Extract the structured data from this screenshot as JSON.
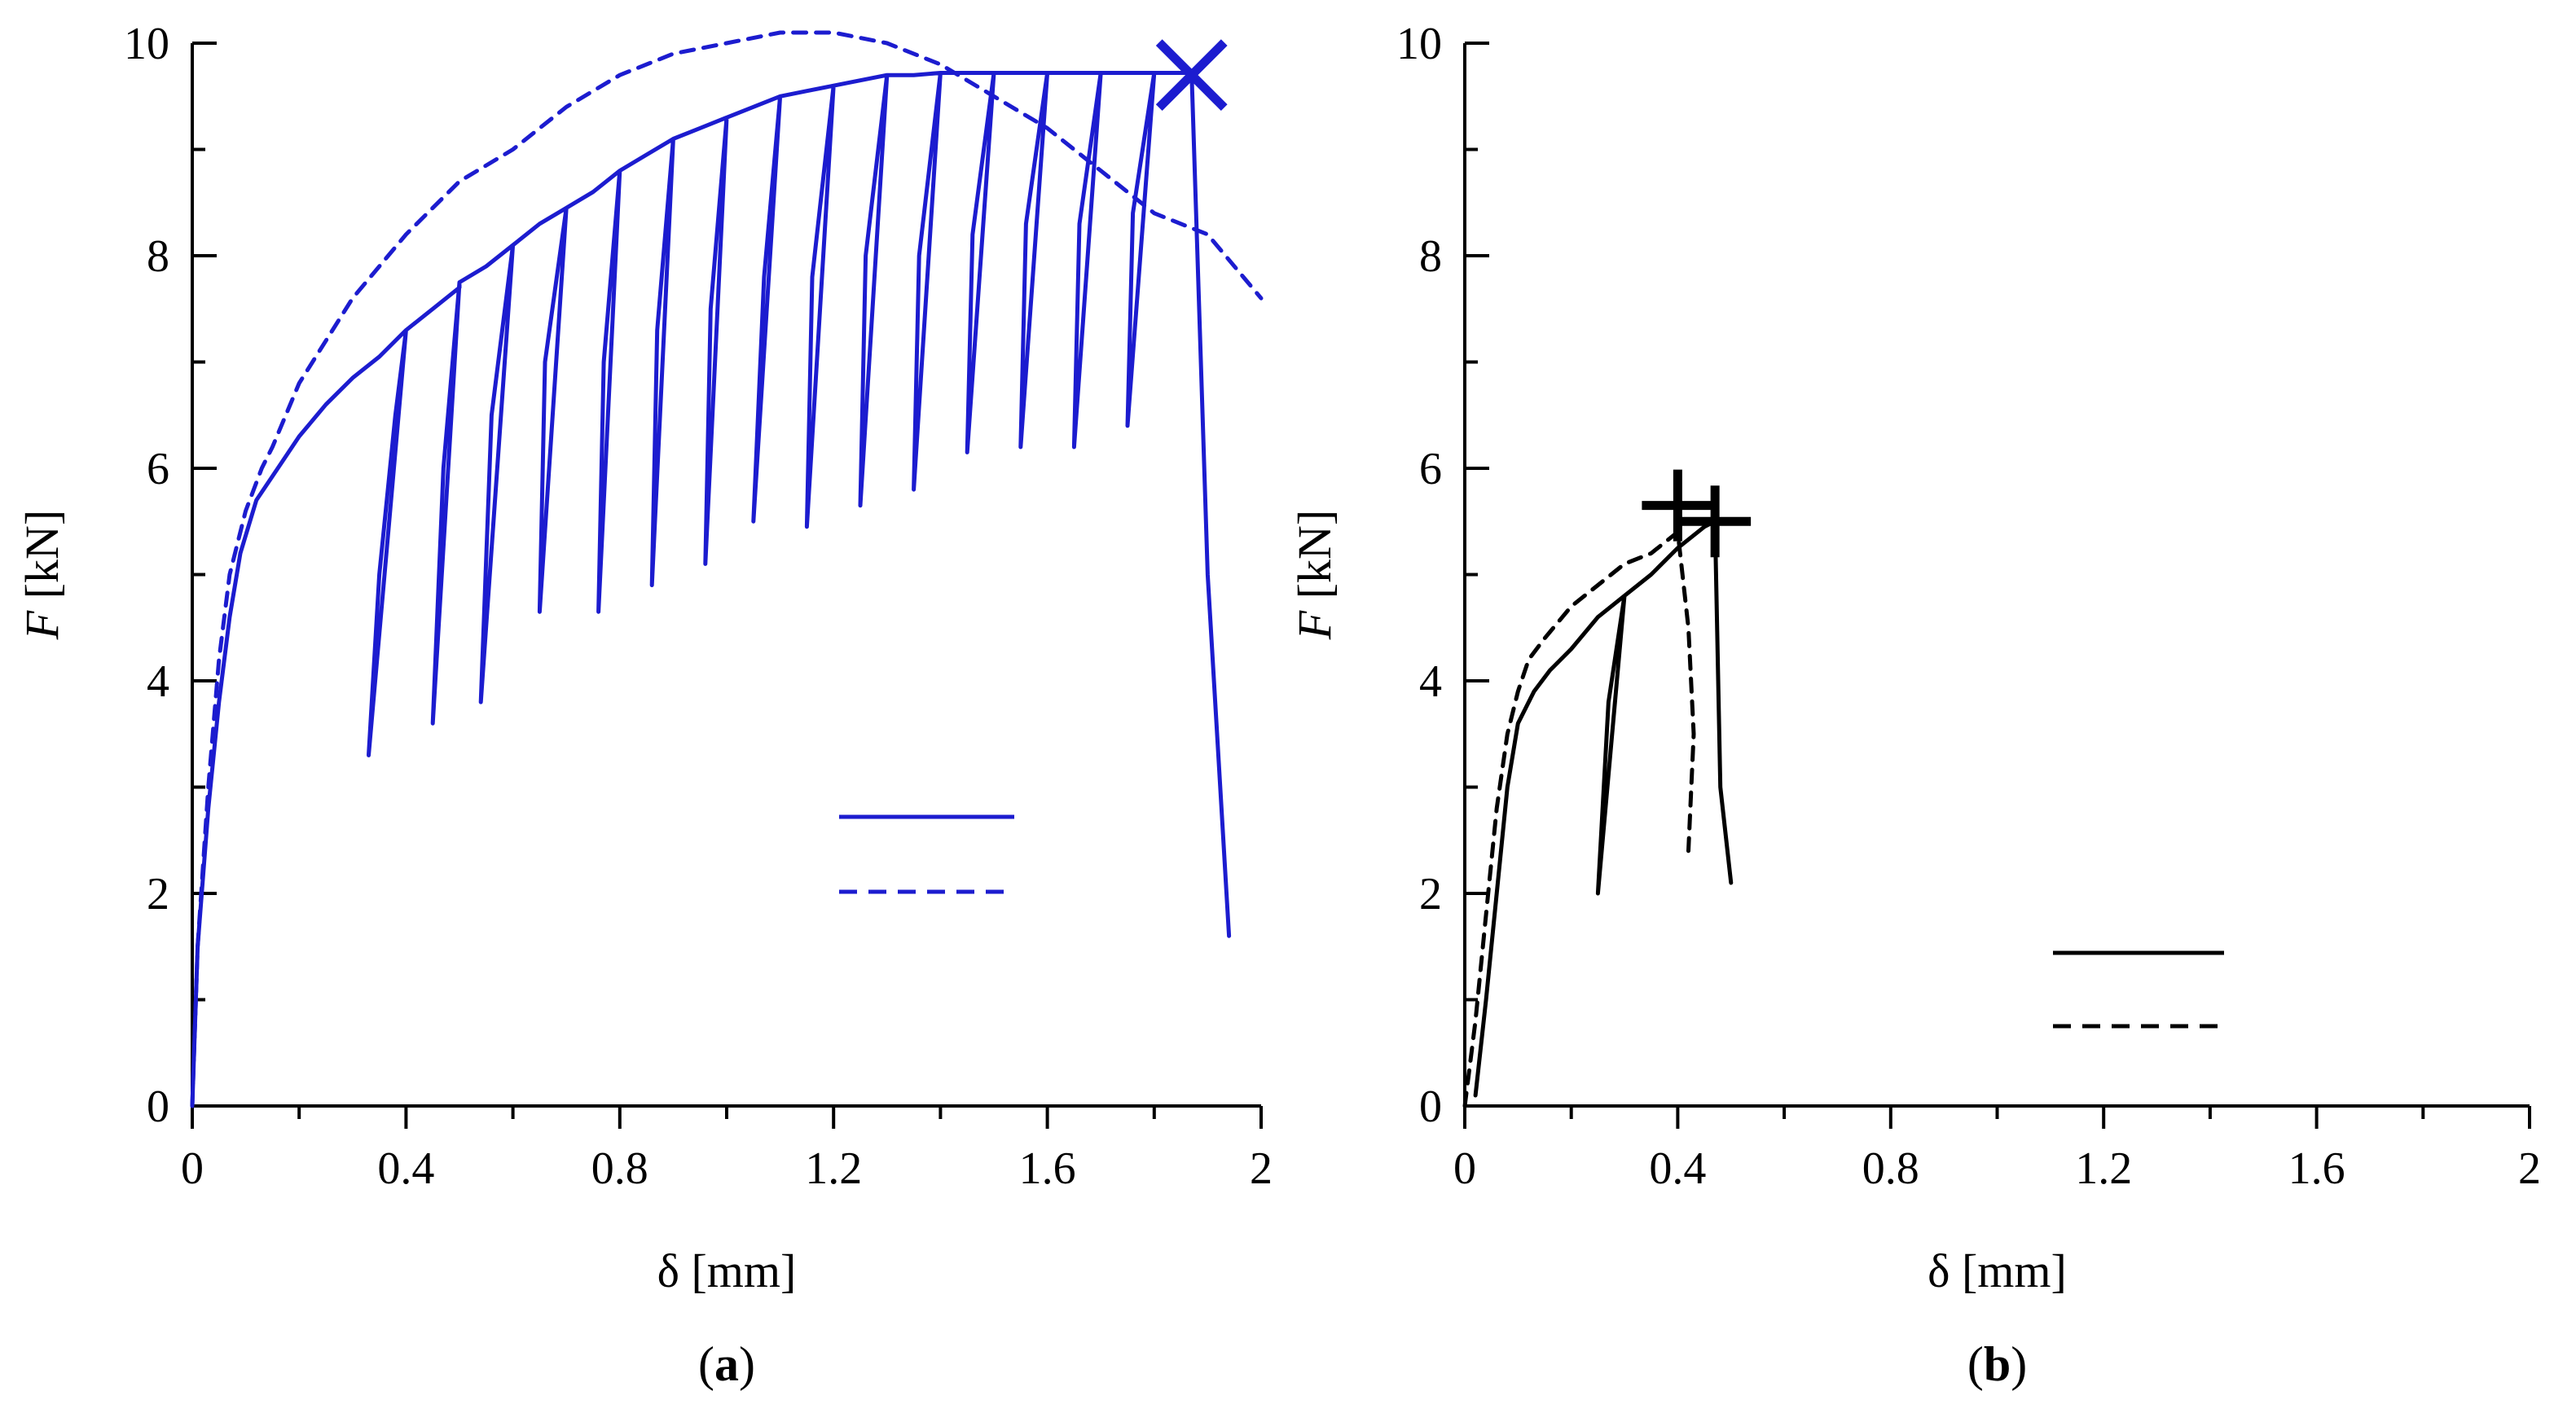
{
  "colors": {
    "panel_a": "#1c1ccf",
    "panel_b": "#000000",
    "axes": "#000000"
  },
  "chart_data": [
    {
      "type": "line",
      "panel_label": "(a)",
      "xlabel": "δ [mm]",
      "ylabel": "F [kN]",
      "xlim": [
        0,
        2
      ],
      "ylim": [
        0,
        10
      ],
      "xticks": [
        0,
        0.4,
        0.8,
        1.2,
        1.6,
        2
      ],
      "xtick_labels": [
        "0",
        "0.4",
        "0.8",
        "1.2",
        "1.6",
        "2"
      ],
      "yticks": [
        0,
        2,
        4,
        6,
        8,
        10
      ],
      "ytick_labels": [
        "0",
        "2",
        "4",
        "6",
        "8",
        "10"
      ],
      "color": "#1c1ccf",
      "legend": {
        "location": "lower-right",
        "entries": [
          {
            "style": "solid",
            "label": ""
          },
          {
            "style": "dashed",
            "label": ""
          }
        ]
      },
      "marker": {
        "shape": "x",
        "x": 1.87,
        "y": 9.7
      },
      "series": [
        {
          "name": "solid",
          "style": "solid",
          "x": [
            0,
            0.01,
            0.03,
            0.05,
            0.07,
            0.09,
            0.12,
            0.16,
            0.2,
            0.25,
            0.3,
            0.35,
            0.39,
            0.4,
            0.33,
            0.35,
            0.38,
            0.4,
            0.45,
            0.5,
            0.5,
            0.45,
            0.47,
            0.5,
            0.55,
            0.6,
            0.6,
            0.54,
            0.56,
            0.6,
            0.65,
            0.7,
            0.7,
            0.65,
            0.66,
            0.7,
            0.75,
            0.8,
            0.8,
            0.76,
            0.77,
            0.8,
            0.85,
            0.9,
            0.9,
            0.86,
            0.87,
            0.9,
            0.95,
            1.0,
            1.0,
            0.96,
            0.97,
            1.0,
            1.05,
            1.1,
            1.1,
            1.05,
            1.07,
            1.1,
            1.15,
            1.2,
            1.2,
            1.15,
            1.16,
            1.2,
            1.25,
            1.3,
            1.3,
            1.25,
            1.26,
            1.3,
            1.35,
            1.4,
            1.4,
            1.35,
            1.36,
            1.4,
            1.45,
            1.5,
            1.5,
            1.45,
            1.46,
            1.5,
            1.55,
            1.6,
            1.6,
            1.55,
            1.56,
            1.6,
            1.65,
            1.7,
            1.7,
            1.65,
            1.66,
            1.7,
            1.75,
            1.8,
            1.8,
            1.75,
            1.76,
            1.8,
            1.85,
            1.87,
            1.87,
            1.9,
            1.94
          ],
          "y": [
            0,
            1.5,
            2.8,
            3.8,
            4.6,
            5.2,
            5.7,
            6.0,
            6.3,
            6.6,
            6.85,
            7.05,
            7.25,
            7.3,
            3.3,
            5.0,
            6.5,
            7.3,
            7.5,
            7.7,
            7.75,
            3.6,
            6.0,
            7.75,
            7.9,
            8.1,
            8.1,
            3.8,
            6.5,
            8.1,
            8.3,
            8.45,
            8.45,
            4.65,
            7.0,
            8.45,
            8.6,
            8.8,
            8.8,
            4.65,
            7.0,
            8.8,
            8.95,
            9.1,
            9.1,
            4.9,
            7.3,
            9.1,
            9.2,
            9.3,
            9.3,
            5.1,
            7.5,
            9.3,
            9.4,
            9.5,
            9.5,
            5.5,
            7.8,
            9.5,
            9.55,
            9.6,
            9.6,
            5.45,
            7.8,
            9.6,
            9.65,
            9.7,
            9.7,
            5.65,
            8.0,
            9.7,
            9.7,
            9.72,
            9.72,
            5.8,
            8.0,
            9.72,
            9.72,
            9.72,
            9.72,
            6.15,
            8.2,
            9.72,
            9.72,
            9.72,
            9.72,
            6.2,
            8.3,
            9.72,
            9.72,
            9.72,
            9.72,
            6.2,
            8.3,
            9.72,
            9.72,
            9.72,
            9.72,
            6.4,
            8.4,
            9.72,
            9.72,
            9.72,
            9.72,
            5.0,
            1.6
          ]
        },
        {
          "name": "dashed",
          "style": "dashed",
          "x": [
            0,
            0.01,
            0.03,
            0.05,
            0.07,
            0.1,
            0.13,
            0.15,
            0.2,
            0.3,
            0.4,
            0.5,
            0.6,
            0.7,
            0.8,
            0.9,
            1.0,
            1.1,
            1.2,
            1.3,
            1.4,
            1.5,
            1.6,
            1.7,
            1.8,
            1.9,
            2.0
          ],
          "y": [
            0,
            1.5,
            3.0,
            4.2,
            5.0,
            5.6,
            6.0,
            6.2,
            6.8,
            7.6,
            8.2,
            8.7,
            9.0,
            9.4,
            9.7,
            9.9,
            10.0,
            10.1,
            10.1,
            10.0,
            9.8,
            9.5,
            9.2,
            8.8,
            8.4,
            8.2,
            7.6
          ]
        }
      ]
    },
    {
      "type": "line",
      "panel_label": "(b)",
      "xlabel": "δ [mm]",
      "ylabel": "F [kN]",
      "xlim": [
        0,
        2
      ],
      "ylim": [
        0,
        10
      ],
      "xticks": [
        0,
        0.4,
        0.8,
        1.2,
        1.6,
        2
      ],
      "xtick_labels": [
        "0",
        "0.4",
        "0.8",
        "1.2",
        "1.6",
        "2"
      ],
      "yticks": [
        0,
        2,
        4,
        6,
        8,
        10
      ],
      "ytick_labels": [
        "0",
        "2",
        "4",
        "6",
        "8",
        "10"
      ],
      "color": "#000000",
      "legend": {
        "location": "lower-right",
        "entries": [
          {
            "style": "solid",
            "label": ""
          },
          {
            "style": "dashed",
            "label": ""
          }
        ]
      },
      "markers": [
        {
          "shape": "+",
          "x": 0.4,
          "y": 5.65
        },
        {
          "shape": "+",
          "x": 0.47,
          "y": 5.5
        }
      ],
      "series": [
        {
          "name": "solid",
          "style": "solid",
          "x": [
            0.02,
            0.04,
            0.06,
            0.08,
            0.1,
            0.13,
            0.16,
            0.2,
            0.25,
            0.3,
            0.25,
            0.27,
            0.3,
            0.35,
            0.4,
            0.45,
            0.47,
            0.48,
            0.5
          ],
          "y": [
            0.1,
            1.0,
            2.0,
            3.0,
            3.6,
            3.9,
            4.1,
            4.3,
            4.6,
            4.8,
            2.0,
            3.8,
            4.8,
            5.0,
            5.25,
            5.45,
            5.5,
            3.0,
            2.1
          ]
        },
        {
          "name": "dashed",
          "style": "dashed",
          "x": [
            0,
            0.02,
            0.04,
            0.06,
            0.08,
            0.1,
            0.12,
            0.15,
            0.2,
            0.25,
            0.3,
            0.35,
            0.4,
            0.42,
            0.43,
            0.42
          ],
          "y": [
            0,
            0.8,
            1.8,
            2.8,
            3.5,
            3.9,
            4.2,
            4.4,
            4.7,
            4.9,
            5.1,
            5.2,
            5.4,
            4.5,
            3.5,
            2.4
          ]
        }
      ]
    }
  ]
}
